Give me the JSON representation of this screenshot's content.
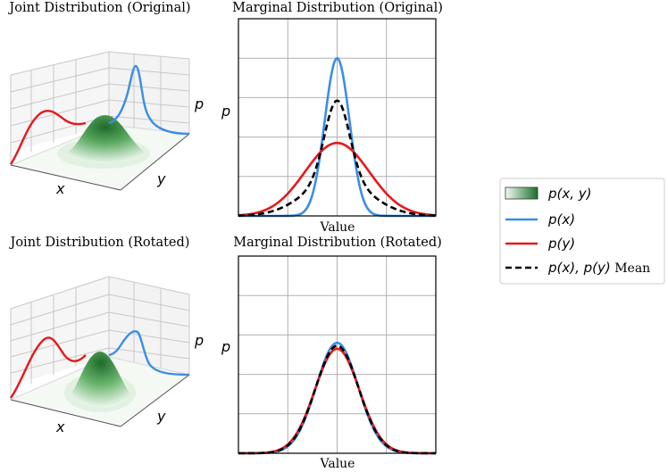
{
  "colors": {
    "px": "#3a8ee6",
    "py": "#e41a1c",
    "mean": "#000000",
    "joint": "#2e7d32"
  },
  "chart_data": [
    {
      "type": "area",
      "panel": "joint-original",
      "title": "Joint Distribution (Original)",
      "xlabel": "x",
      "ylabel": "y",
      "zlabel": "p",
      "series": [
        {
          "name": "p(x)",
          "side": "right wall",
          "shape": "single narrow peak"
        },
        {
          "name": "p(y)",
          "side": "left wall",
          "shape": "broad hump"
        }
      ]
    },
    {
      "type": "line",
      "panel": "marginal-original",
      "title": "Marginal Distribution (Original)",
      "xlabel": "Value",
      "ylabel": "p",
      "xlim": [
        -4,
        4
      ],
      "ylim": [
        0,
        1.0
      ],
      "grid": true,
      "x": [
        -4,
        -3.5,
        -3,
        -2.5,
        -2,
        -1.5,
        -1,
        -0.5,
        0,
        0.5,
        1,
        1.5,
        2,
        2.5,
        3,
        3.5,
        4
      ],
      "series": [
        {
          "name": "p(x)",
          "sigma": 0.5,
          "peak": 0.8,
          "values": [
            0.0,
            0.0,
            0.0,
            0.0,
            0.0003,
            0.009,
            0.108,
            0.485,
            0.8,
            0.485,
            0.108,
            0.009,
            0.0003,
            0.0,
            0.0,
            0.0,
            0.0
          ]
        },
        {
          "name": "p(y)",
          "sigma": 1.3,
          "peak": 0.37,
          "values": [
            0.003,
            0.013,
            0.026,
            0.058,
            0.113,
            0.189,
            0.27,
            0.344,
            0.37,
            0.344,
            0.27,
            0.189,
            0.113,
            0.058,
            0.026,
            0.013,
            0.003
          ]
        },
        {
          "name": "p(x), p(y) Mean",
          "dashed": true,
          "values": [
            0.001,
            0.006,
            0.013,
            0.029,
            0.057,
            0.099,
            0.189,
            0.414,
            0.585,
            0.414,
            0.189,
            0.099,
            0.057,
            0.029,
            0.013,
            0.006,
            0.001
          ]
        }
      ]
    },
    {
      "type": "area",
      "panel": "joint-rotated",
      "title": "Joint Distribution (Rotated)",
      "xlabel": "x",
      "ylabel": "y",
      "zlabel": "p",
      "series": [
        {
          "name": "p(x)",
          "side": "right wall",
          "shape": "single peak"
        },
        {
          "name": "p(y)",
          "side": "left wall",
          "shape": "single peak"
        }
      ]
    },
    {
      "type": "line",
      "panel": "marginal-rotated",
      "title": "Marginal Distribution (Rotated)",
      "xlabel": "Value",
      "ylabel": "p",
      "xlim": [
        -4,
        4
      ],
      "ylim": [
        0,
        1.0
      ],
      "grid": true,
      "x": [
        -4,
        -3.5,
        -3,
        -2.5,
        -2,
        -1.5,
        -1,
        -0.5,
        0,
        0.5,
        1,
        1.5,
        2,
        2.5,
        3,
        3.5,
        4
      ],
      "series": [
        {
          "name": "p(x)",
          "sigma": 0.85,
          "peak": 0.56,
          "values": [
            0.0,
            0.001,
            0.001,
            0.008,
            0.035,
            0.118,
            0.28,
            0.47,
            0.56,
            0.47,
            0.28,
            0.118,
            0.035,
            0.008,
            0.001,
            0.001,
            0.0
          ]
        },
        {
          "name": "p(y)",
          "sigma": 0.9,
          "peak": 0.53,
          "values": [
            0.0,
            0.001,
            0.002,
            0.011,
            0.045,
            0.132,
            0.286,
            0.453,
            0.53,
            0.453,
            0.286,
            0.132,
            0.045,
            0.011,
            0.002,
            0.001,
            0.0
          ]
        },
        {
          "name": "p(x), p(y) Mean",
          "dashed": true,
          "values": [
            0.0,
            0.001,
            0.002,
            0.01,
            0.04,
            0.125,
            0.283,
            0.462,
            0.545,
            0.462,
            0.283,
            0.125,
            0.04,
            0.01,
            0.002,
            0.001,
            0.0
          ]
        }
      ]
    }
  ],
  "legend": {
    "position": "right",
    "entries": [
      {
        "key": "joint",
        "label": "p(x, y)"
      },
      {
        "key": "px",
        "label": "p(x)"
      },
      {
        "key": "py",
        "label": "p(y)"
      },
      {
        "key": "mean",
        "label_math": "p(x), p(y)",
        "label_text": " Mean"
      }
    ]
  }
}
